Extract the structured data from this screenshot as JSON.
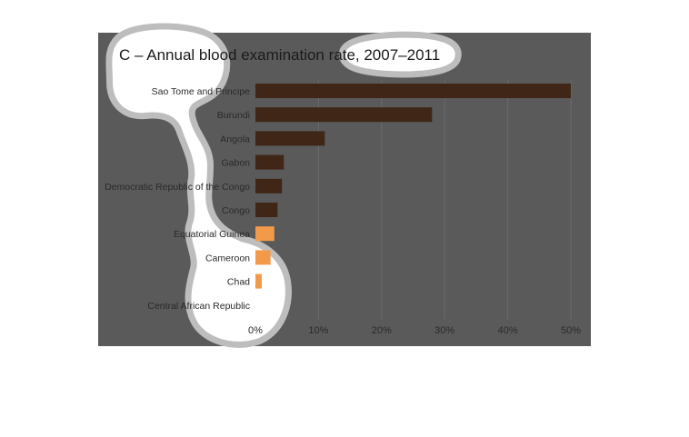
{
  "colors": {
    "background_overlay": "#5a5a5a",
    "bar_dim": "#3f2617",
    "bar_highlight": "#f39a4a",
    "highlight_blob": "#ffffff",
    "highlight_halo": "#bdbdbd",
    "gridline": "#6a6a6a"
  },
  "chart_data": {
    "type": "bar",
    "orientation": "horizontal",
    "title": "C – Annual blood examination rate, 2007–2011",
    "xlabel": "",
    "ylabel": "",
    "categories": [
      "Sao Tome and Principe",
      "Burundi",
      "Angola",
      "Gabon",
      "Democratic Republic of the Congo",
      "Congo",
      "Equatorial Guinea",
      "Cameroon",
      "Chad",
      "Central African Republic"
    ],
    "values": [
      50,
      28,
      11,
      4.5,
      4.2,
      3.5,
      3.0,
      2.4,
      1.0,
      0
    ],
    "highlighted": [
      false,
      false,
      false,
      false,
      false,
      false,
      true,
      true,
      true,
      true
    ],
    "xlim": [
      0,
      50
    ],
    "xticks": [
      "0%",
      "10%",
      "20%",
      "30%",
      "40%",
      "50%"
    ],
    "grid": true
  }
}
